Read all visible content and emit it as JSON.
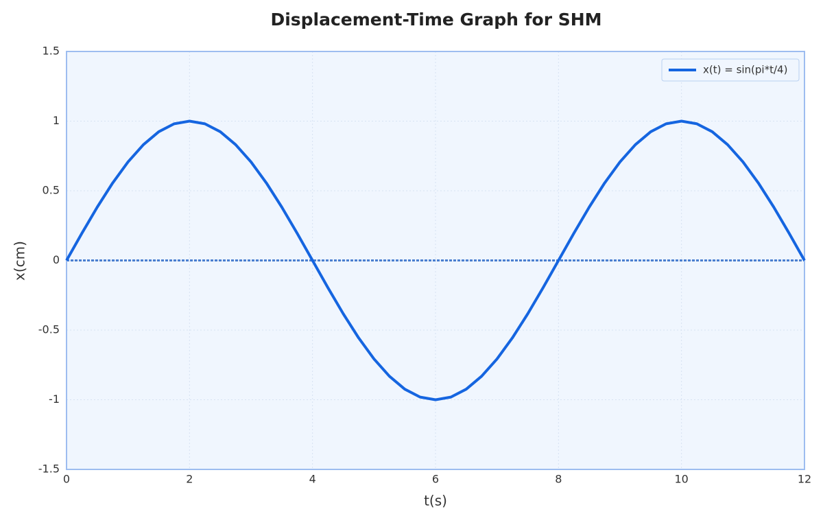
{
  "chart_data": {
    "type": "line",
    "title": "Displacement-Time Graph for SHM",
    "x_label": "t(s)",
    "y_label": "x(cm)",
    "x": [
      0,
      0.25,
      0.5,
      0.75,
      1,
      1.25,
      1.5,
      1.75,
      2,
      2.25,
      2.5,
      2.75,
      3,
      3.25,
      3.5,
      3.75,
      4,
      4.25,
      4.5,
      4.75,
      5,
      5.25,
      5.5,
      5.75,
      6,
      6.25,
      6.5,
      6.75,
      7,
      7.25,
      7.5,
      7.75,
      8,
      8.25,
      8.5,
      8.75,
      9,
      9.25,
      9.5,
      9.75,
      10,
      10.25,
      10.5,
      10.75,
      11,
      11.25,
      11.5,
      11.75,
      12
    ],
    "series": [
      {
        "name": "x(t) = sin(pi*t/4)",
        "color": "#1565e0",
        "values": [
          0,
          0.195,
          0.383,
          0.556,
          0.707,
          0.831,
          0.924,
          0.981,
          1,
          0.981,
          0.924,
          0.831,
          0.707,
          0.556,
          0.383,
          0.195,
          0,
          -0.195,
          -0.383,
          -0.556,
          -0.707,
          -0.831,
          -0.924,
          -0.981,
          -1,
          -0.981,
          -0.924,
          -0.831,
          -0.707,
          -0.556,
          -0.383,
          -0.195,
          0,
          0.195,
          0.383,
          0.556,
          0.707,
          0.831,
          0.924,
          0.981,
          1,
          0.981,
          0.924,
          0.831,
          0.707,
          0.556,
          0.383,
          0.195,
          0
        ]
      }
    ],
    "hlines": [
      0
    ],
    "xlim": [
      0,
      12
    ],
    "xticks": [
      0,
      2,
      4,
      6,
      8,
      10,
      12
    ],
    "ylim": [
      -1.5,
      1.5
    ],
    "yticks": [
      -1.5,
      -1,
      -0.5,
      0,
      0.5,
      1,
      1.5
    ],
    "grid": true,
    "legend": "upper right"
  }
}
